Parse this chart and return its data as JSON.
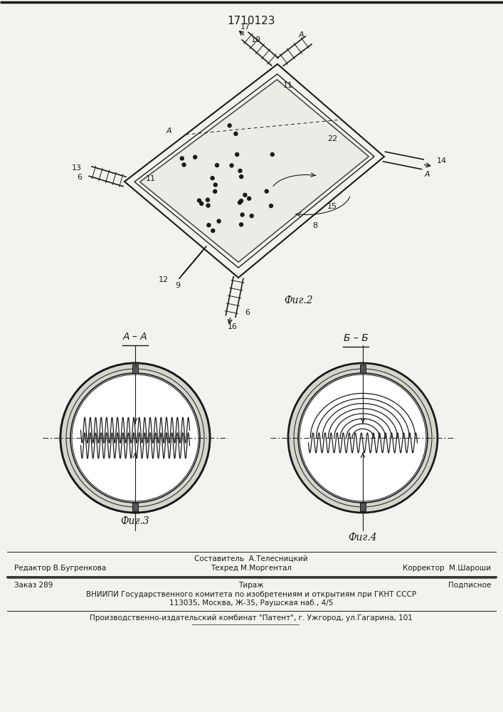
{
  "title_number": "1710123",
  "fig2_label": "Фиг.2",
  "fig3_label": "Фиг.3",
  "fig4_label": "Фиг.4",
  "footer_line1_left": "Редактор В.Бугренкова",
  "footer_line1_center_top": "Составитель  А.Телесницкий",
  "footer_line1_center": "Техред М.Моргентал",
  "footer_line1_right": "Корректор  М.Шароши",
  "footer_line2_left": "Заказ 289",
  "footer_line2_center": "Тираж",
  "footer_line2_right": "Подписное",
  "footer_line3": "ВНИИПИ Государственного комитета по изобретениям и открытиям при ГКНТ СССР",
  "footer_line4": "113035, Москва, Ж-35, Раушская наб., 4/5",
  "footer_line5": "Производственно-издательский комбинат \"Патент\", г. Ужгород, ул.Гагарина, 101",
  "bg_color": "#f2f2ee",
  "line_color": "#1a1a1a"
}
